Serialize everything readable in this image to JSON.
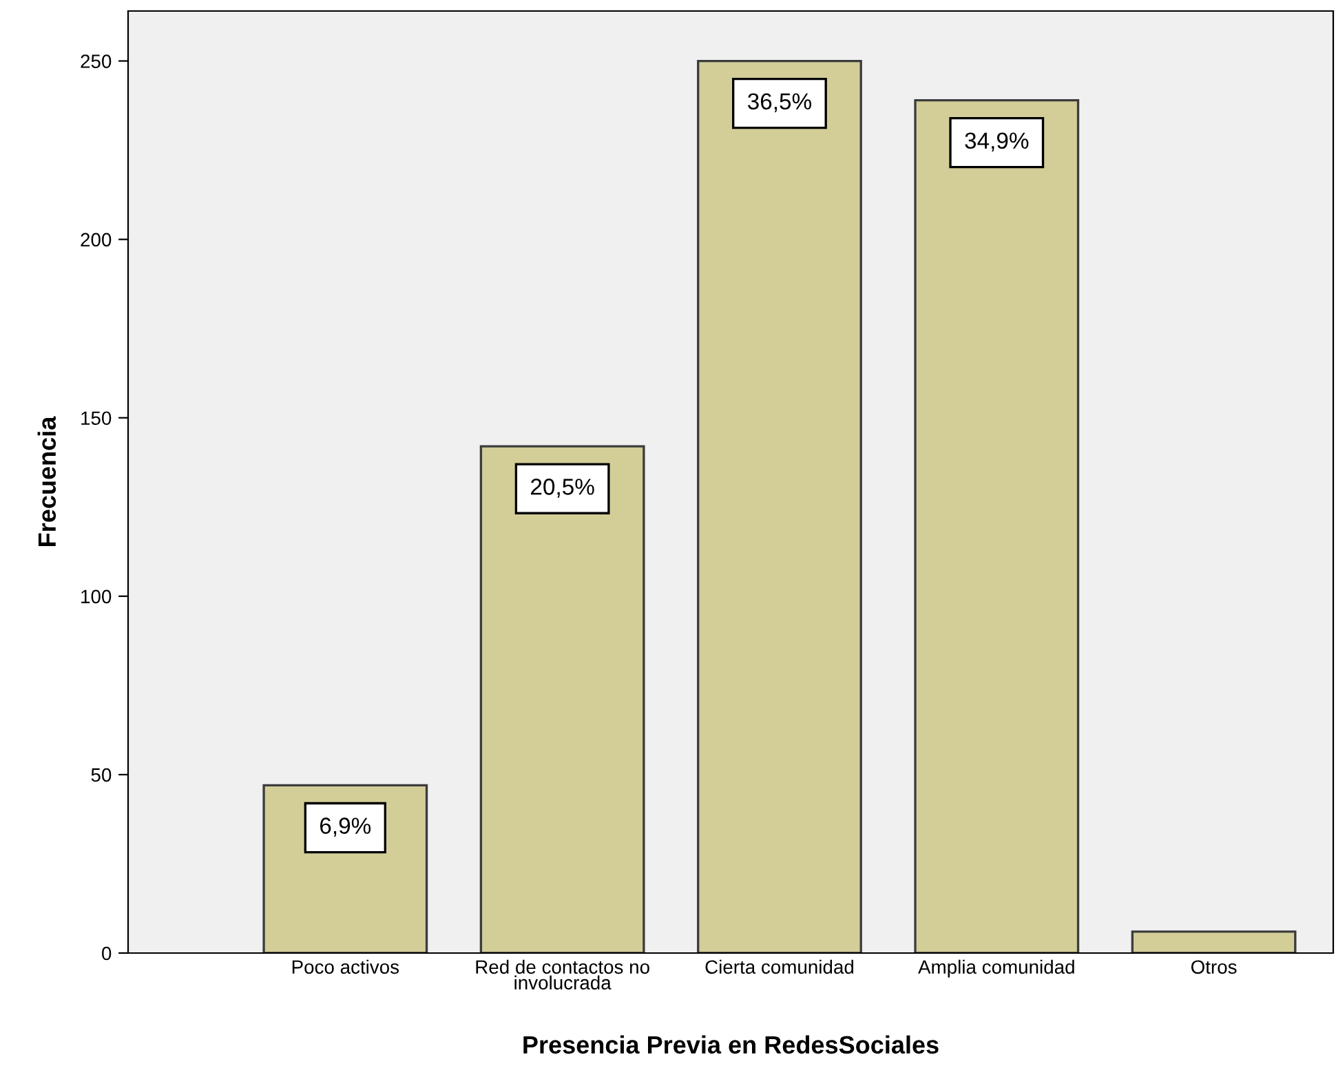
{
  "chart_data": {
    "type": "bar",
    "xlabel": "Presencia Previa en RedesSociales",
    "ylabel": "Frecuencia",
    "categories": [
      "Poco activos",
      "Red de contactos no\ninvolucrada",
      "Cierta comunidad",
      "Amplia comunidad",
      "Otros"
    ],
    "values": [
      47,
      142,
      250,
      239,
      6
    ],
    "annotations": [
      {
        "text": "6,9%",
        "x": "Poco activos",
        "y": 47
      },
      {
        "text": "20,5%",
        "x": "Red de contactos no\ninvolucrada",
        "y": 142
      },
      {
        "text": "36,5%",
        "x": "Cierta comunidad",
        "y": 250
      },
      {
        "text": "34,9%",
        "x": "Amplia comunidad",
        "y": 239
      }
    ],
    "color": "#d3ce98",
    "ylim": [
      0,
      264
    ],
    "yticks": [
      0,
      50,
      100,
      150,
      200,
      250
    ],
    "grid": false,
    "legend": false
  }
}
